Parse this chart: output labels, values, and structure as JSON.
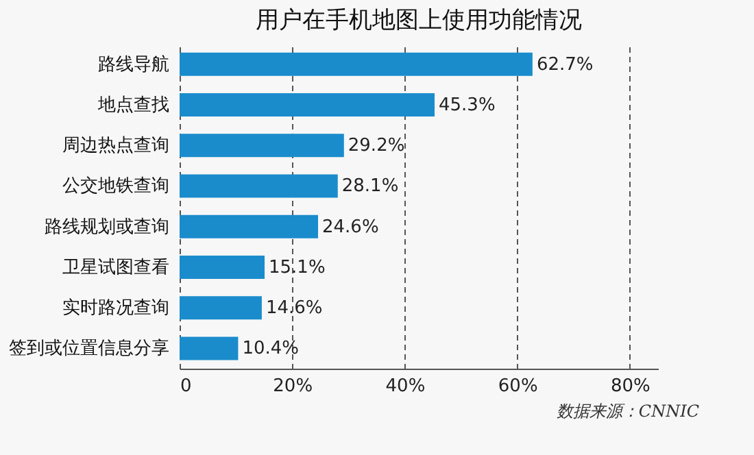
{
  "chart_data": {
    "type": "bar",
    "orientation": "horizontal",
    "title": "用户在手机地图上使用功能情况",
    "categories": [
      "路线导航",
      "地点查找",
      "周边热点查询",
      "公交地铁查询",
      "路线规划或查询",
      "卫星试图查看",
      "实时路况查询",
      "签到或位置信息分享"
    ],
    "values": [
      62.7,
      45.3,
      29.2,
      28.1,
      24.6,
      15.1,
      14.6,
      10.4
    ],
    "value_labels": [
      "62.7%",
      "45.3%",
      "29.2%",
      "28.1%",
      "24.6%",
      "15.1%",
      "14.6%",
      "10.4%"
    ],
    "color": "#1a8ccc",
    "xlim": [
      0,
      85
    ],
    "xticks": [
      0,
      {
        "value": 20,
        "label": "20%"
      },
      {
        "value": 40,
        "label": "40%"
      },
      {
        "value": 60,
        "label": "60%"
      },
      {
        "value": 80,
        "label": "80%"
      }
    ],
    "grid": "x",
    "line_style": "dashed",
    "annotations": [
      "数据来源：CNNIC"
    ]
  }
}
